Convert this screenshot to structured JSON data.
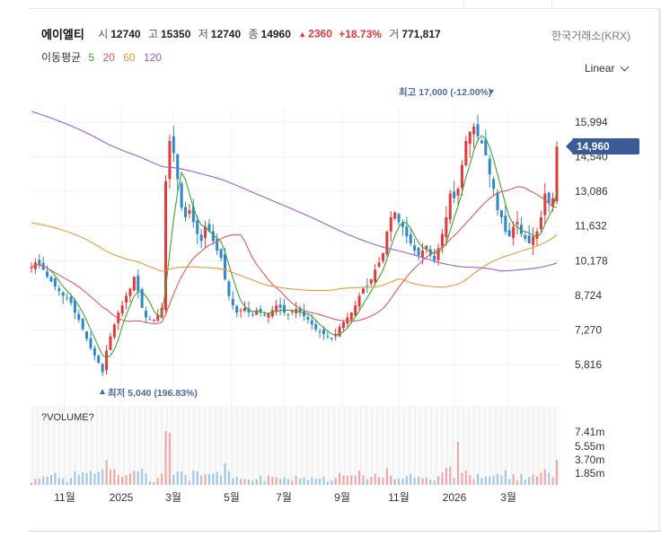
{
  "header": {
    "name": "에이엘티",
    "open_label": "시",
    "open": "12740",
    "high_label": "고",
    "high": "15350",
    "low_label": "저",
    "low": "12740",
    "close_label": "종",
    "close": "14960",
    "change": "2360",
    "change_pct": "+18.73%",
    "volume_label": "거",
    "volume": "771,817",
    "exchange": "한국거래소(KRX)"
  },
  "ma_legend": {
    "title": "이동평균",
    "ma5": "5",
    "ma20": "20",
    "ma60": "60",
    "ma120": "120"
  },
  "scale_selector": "Linear",
  "annotations": {
    "high": "최고 17,000 (-12.00%)",
    "low": "최저 5,040 (196.83%)"
  },
  "volume_panel": {
    "title": "?VOLUME?"
  },
  "colors": {
    "up": "#e03a3a",
    "down": "#2f87c9",
    "ma5": "#3aa830",
    "ma20": "#e05858",
    "ma60": "#e39a3c",
    "ma120": "#9a5fd1",
    "last_price_bg": "#3b5a97",
    "annotation": "#4c6a9e"
  },
  "chart_data": {
    "type": "candlestick",
    "y_ticks": [
      15994,
      14540,
      13086,
      11632,
      10178,
      8724,
      7270,
      5816
    ],
    "y_tick_labels": [
      "15,994",
      "14,540",
      "13,086",
      "11,632",
      "10,178",
      "8,724",
      "7,270",
      "5,816"
    ],
    "x_tick_labels": [
      "11월",
      "2025",
      "3월",
      "5월",
      "7월",
      "9월",
      "11월",
      "2026",
      "3월"
    ],
    "last_price": 14960,
    "last_price_label": "14,960",
    "period_high": 17000,
    "period_low": 5040,
    "volume_ticks": [
      "7.41m",
      "5.55m",
      "3.70m",
      "1.85m"
    ],
    "close_series_approx": [
      9900,
      10100,
      10000,
      9800,
      9500,
      9300,
      9100,
      8900,
      8700,
      8600,
      8400,
      8000,
      7700,
      7300,
      6900,
      6500,
      6200,
      5900,
      5500,
      6400,
      7000,
      7500,
      8000,
      8300,
      8700,
      9000,
      9500,
      8900,
      8200,
      7800,
      7700,
      7700,
      7900,
      8200,
      13500,
      15200,
      14700,
      13600,
      12400,
      12000,
      12300,
      11800,
      11300,
      11000,
      11600,
      11400,
      11000,
      10600,
      10300,
      9400,
      8700,
      8300,
      8000,
      8100,
      8200,
      8000,
      7900,
      8100,
      8000,
      7900,
      7950,
      8100,
      8300,
      8200,
      8000,
      7900,
      8050,
      8150,
      8000,
      7850,
      7700,
      7500,
      7300,
      7200,
      7100,
      7000,
      6900,
      7100,
      7400,
      7600,
      7800,
      8000,
      8300,
      8700,
      9000,
      9100,
      9400,
      9800,
      10100,
      10500,
      11400,
      12000,
      12200,
      11800,
      11600,
      11200,
      10900,
      10600,
      10400,
      10600,
      10800,
      10400,
      10200,
      10700,
      11300,
      12000,
      13000,
      12800,
      13200,
      14200,
      15200,
      15600,
      15800,
      15400,
      15100,
      14600,
      13800,
      13200,
      12300,
      12000,
      11400,
      11200,
      11600,
      11800,
      11300,
      11100,
      10900,
      11200,
      11400,
      12000,
      13000,
      12600,
      12800,
      14960
    ],
    "ma_series": [
      {
        "name": "5"
      },
      {
        "name": "20"
      },
      {
        "name": "60"
      },
      {
        "name": "120"
      }
    ]
  }
}
